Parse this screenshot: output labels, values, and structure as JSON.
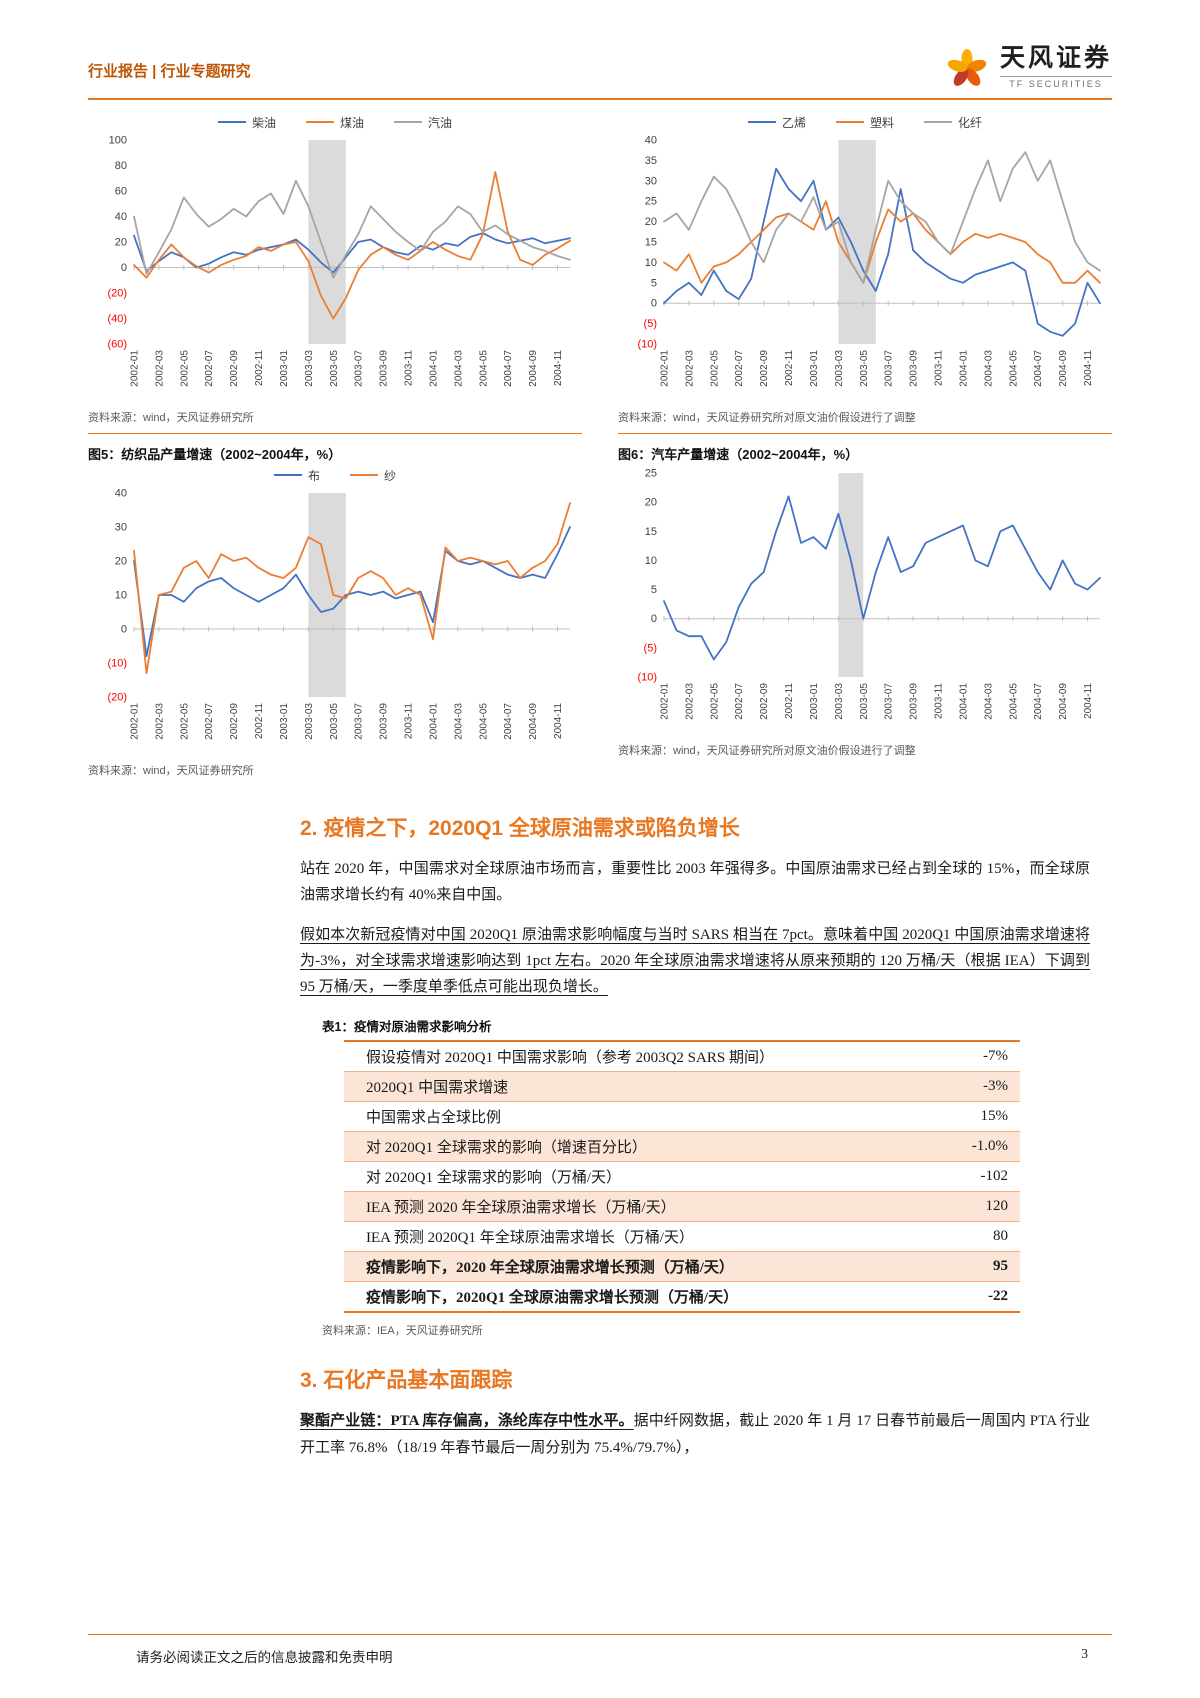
{
  "header": {
    "left": "行业报告 | 行业专题研究",
    "brand": "天风证券",
    "brand_sub": "TF SECURITIES"
  },
  "colors": {
    "accent": "#E87722",
    "series_blue": "#4472C4",
    "series_orange": "#ED7D31",
    "series_gray": "#A5A5A5",
    "negative_tick": "#FF0000",
    "sars_band": "#DBDBDB",
    "table_shade": "#FBE5D6"
  },
  "figures": [
    {
      "source": "资料来源：wind，天风证券研究所"
    },
    {
      "source": "资料来源：wind，天风证券研究所对原文油价假设进行了调整"
    },
    {
      "title": "图5：纺织品产量增速（2002~2004年，%）",
      "source": "资料来源：wind，天风证券研究所"
    },
    {
      "title": "图6：汽车产量增速（2002~2004年，%）",
      "source": "资料来源：wind，天风证券研究所对原文油价假设进行了调整"
    }
  ],
  "chart_data": [
    {
      "type": "line",
      "legend": [
        "柴油",
        "煤油",
        "汽油"
      ],
      "colors": [
        "#4472C4",
        "#ED7D31",
        "#A5A5A5"
      ],
      "ylim": [
        -60,
        100
      ],
      "yticks": [
        100,
        80,
        60,
        40,
        20,
        0,
        -20,
        -40,
        -60
      ],
      "band_x": [
        14,
        17
      ],
      "x_labels": [
        "2002-01",
        "2002-03",
        "2002-05",
        "2002-07",
        "2002-09",
        "2002-11",
        "2003-01",
        "2003-03",
        "2003-05",
        "2003-07",
        "2003-09",
        "2003-11",
        "2004-01",
        "2004-03",
        "2004-05",
        "2004-07",
        "2004-09",
        "2004-11"
      ],
      "series": [
        {
          "name": "柴油",
          "values": [
            25,
            -3,
            5,
            12,
            8,
            0,
            3,
            8,
            12,
            10,
            14,
            16,
            18,
            22,
            14,
            4,
            -4,
            8,
            20,
            22,
            16,
            12,
            10,
            17,
            14,
            19,
            17,
            24,
            27,
            22,
            19,
            21,
            23,
            19,
            21,
            23
          ]
        },
        {
          "name": "煤油",
          "values": [
            2,
            -8,
            6,
            18,
            8,
            1,
            -4,
            2,
            6,
            9,
            16,
            13,
            18,
            20,
            5,
            -22,
            -40,
            -24,
            -2,
            10,
            16,
            10,
            6,
            13,
            20,
            14,
            9,
            6,
            26,
            75,
            28,
            6,
            2,
            10,
            15,
            21
          ]
        },
        {
          "name": "汽油",
          "values": [
            40,
            -5,
            12,
            30,
            55,
            42,
            32,
            38,
            46,
            40,
            52,
            58,
            42,
            68,
            48,
            20,
            -8,
            10,
            26,
            48,
            38,
            28,
            20,
            13,
            28,
            36,
            48,
            42,
            28,
            33,
            26,
            21,
            16,
            13,
            9,
            6
          ]
        }
      ]
    },
    {
      "type": "line",
      "legend": [
        "乙烯",
        "塑料",
        "化纤"
      ],
      "colors": [
        "#4472C4",
        "#ED7D31",
        "#A5A5A5"
      ],
      "ylim": [
        -10,
        40
      ],
      "yticks": [
        40,
        35,
        30,
        25,
        20,
        15,
        10,
        5,
        0,
        -5,
        -10
      ],
      "band_x": [
        14,
        17
      ],
      "x_labels": [
        "2002-01",
        "2002-03",
        "2002-05",
        "2002-07",
        "2002-09",
        "2002-11",
        "2003-01",
        "2003-03",
        "2003-05",
        "2003-07",
        "2003-09",
        "2003-11",
        "2004-01",
        "2004-03",
        "2004-05",
        "2004-07",
        "2004-09",
        "2004-11"
      ],
      "series": [
        {
          "name": "乙烯",
          "values": [
            0,
            3,
            5,
            2,
            8,
            3,
            1,
            6,
            20,
            33,
            28,
            25,
            30,
            18,
            21,
            15,
            8,
            3,
            12,
            28,
            13,
            10,
            8,
            6,
            5,
            7,
            8,
            9,
            10,
            8,
            -5,
            -7,
            -8,
            -5,
            5,
            0
          ]
        },
        {
          "name": "塑料",
          "values": [
            10,
            8,
            12,
            5,
            9,
            10,
            12,
            15,
            18,
            21,
            22,
            20,
            18,
            25,
            15,
            10,
            5,
            15,
            23,
            20,
            22,
            18,
            15,
            12,
            15,
            17,
            16,
            17,
            16,
            15,
            12,
            10,
            5,
            5,
            8,
            5
          ]
        },
        {
          "name": "化纤",
          "values": [
            20,
            22,
            18,
            25,
            31,
            28,
            22,
            15,
            10,
            18,
            22,
            20,
            26,
            18,
            20,
            10,
            5,
            18,
            30,
            25,
            22,
            20,
            15,
            12,
            20,
            28,
            35,
            25,
            33,
            37,
            30,
            35,
            25,
            15,
            10,
            8
          ]
        }
      ]
    },
    {
      "type": "line",
      "title": "纺织品产量增速（2002~2004年，%）",
      "legend": [
        "布",
        "纱"
      ],
      "colors": [
        "#4472C4",
        "#ED7D31"
      ],
      "ylim": [
        -20,
        40
      ],
      "yticks": [
        40,
        30,
        20,
        10,
        0,
        -10,
        -20
      ],
      "band_x": [
        14,
        17
      ],
      "x_labels": [
        "2002-01",
        "2002-03",
        "2002-05",
        "2002-07",
        "2002-09",
        "2002-11",
        "2003-01",
        "2003-03",
        "2003-05",
        "2003-07",
        "2003-09",
        "2003-11",
        "2004-01",
        "2004-03",
        "2004-05",
        "2004-07",
        "2004-09",
        "2004-11"
      ],
      "series": [
        {
          "name": "布",
          "values": [
            20,
            -8,
            10,
            10,
            8,
            12,
            14,
            15,
            12,
            10,
            8,
            10,
            12,
            16,
            10,
            5,
            6,
            10,
            11,
            10,
            11,
            9,
            10,
            11,
            2,
            23,
            20,
            19,
            20,
            18,
            16,
            15,
            16,
            15,
            22,
            30
          ]
        },
        {
          "name": "纱",
          "values": [
            23,
            -13,
            10,
            11,
            18,
            20,
            15,
            22,
            20,
            21,
            18,
            16,
            15,
            18,
            27,
            25,
            10,
            9,
            15,
            17,
            15,
            10,
            12,
            10,
            -3,
            24,
            20,
            21,
            20,
            19,
            20,
            15,
            18,
            20,
            25,
            37
          ]
        }
      ]
    },
    {
      "type": "line",
      "title": "汽车产量增速（2002~2004年，%）",
      "legend": [],
      "colors": [
        "#4472C4"
      ],
      "ylim": [
        -10,
        25
      ],
      "yticks": [
        25,
        20,
        15,
        10,
        5,
        0,
        -5,
        -10
      ],
      "band_x": [
        14,
        16
      ],
      "x_labels": [
        "2002-01",
        "2002-03",
        "2002-05",
        "2002-07",
        "2002-09",
        "2002-11",
        "2003-01",
        "2003-03",
        "2003-05",
        "2003-07",
        "2003-09",
        "2003-11",
        "2004-01",
        "2004-03",
        "2004-05",
        "2004-07",
        "2004-09",
        "2004-11"
      ],
      "series": [
        {
          "name": "汽车产量增速",
          "values": [
            3,
            -2,
            -3,
            -3,
            -7,
            -4,
            2,
            6,
            8,
            15,
            21,
            13,
            14,
            12,
            18,
            10,
            0,
            8,
            14,
            8,
            9,
            13,
            14,
            15,
            16,
            10,
            9,
            15,
            16,
            12,
            8,
            5,
            10,
            6,
            5,
            7
          ]
        }
      ]
    }
  ],
  "section2": {
    "heading": "2. 疫情之下，2020Q1 全球原油需求或陷负增长",
    "para1": "站在 2020 年，中国需求对全球原油市场而言，重要性比 2003 年强得多。中国原油需求已经占到全球的 15%，而全球原油需求增长约有 40%来自中国。",
    "para2": "假如本次新冠疫情对中国 2020Q1 原油需求影响幅度与当时 SARS 相当在 7pct。意味着中国 2020Q1 中国原油需求增速将为-3%，对全球需求增速影响达到 1pct 左右。2020 年全球原油需求增速将从原来预期的 120 万桶/天（根据 IEA）下调到 95 万桶/天，一季度单季低点可能出现负增长。"
  },
  "table1": {
    "title": "表1：疫情对原油需求影响分析",
    "rows": [
      {
        "label": "假设疫情对 2020Q1 中国需求影响（参考 2003Q2 SARS 期间）",
        "value": "-7%",
        "bold": false
      },
      {
        "label": "2020Q1 中国需求增速",
        "value": "-3%",
        "bold": false
      },
      {
        "label": "中国需求占全球比例",
        "value": "15%",
        "bold": false
      },
      {
        "label": "对 2020Q1 全球需求的影响（增速百分比）",
        "value": "-1.0%",
        "bold": false
      },
      {
        "label": "对 2020Q1 全球需求的影响（万桶/天）",
        "value": "-102",
        "bold": false
      },
      {
        "label": "IEA 预测 2020 年全球原油需求增长（万桶/天）",
        "value": "120",
        "bold": false
      },
      {
        "label": "IEA 预测 2020Q1 年全球原油需求增长（万桶/天）",
        "value": "80",
        "bold": false
      },
      {
        "label": "疫情影响下，2020 年全球原油需求增长预测（万桶/天）",
        "value": "95",
        "bold": true
      },
      {
        "label": "疫情影响下，2020Q1 全球原油需求增长预测（万桶/天）",
        "value": "-22",
        "bold": true
      }
    ],
    "source": "资料来源：IEA，天风证券研究所"
  },
  "section3": {
    "heading": "3. 石化产品基本面跟踪",
    "para_lead": "聚酯产业链：PTA 库存偏高，涤纶库存中性水平。",
    "para_rest": "据中纤网数据，截止 2020 年 1 月 17 日春节前最后一周国内 PTA 行业开工率 76.8%（18/19 年春节最后一周分别为 75.4%/79.7%），"
  },
  "footer": {
    "disclaimer": "请务必阅读正文之后的信息披露和免责申明",
    "page": "3"
  }
}
